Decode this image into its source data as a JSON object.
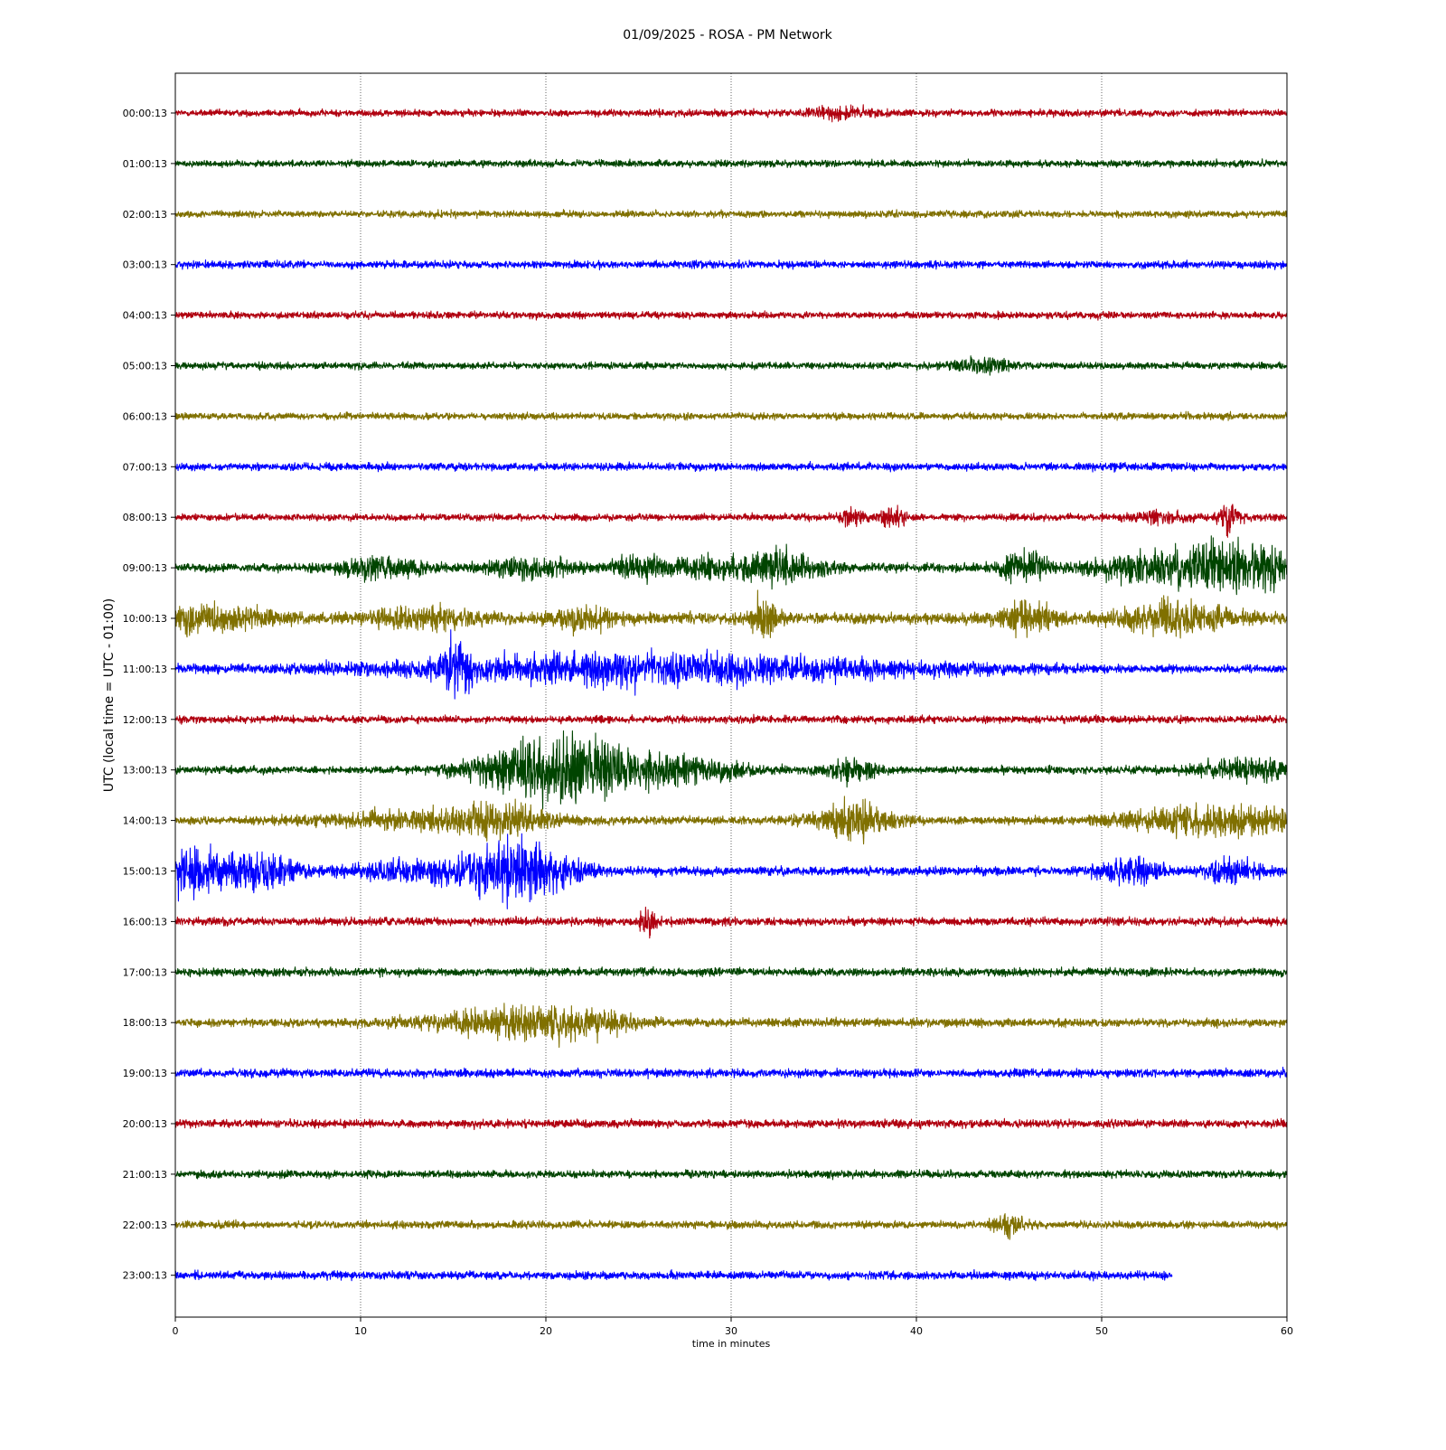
{
  "chart_data": {
    "type": "line",
    "title": "01/09/2025 - ROSA - PM Network",
    "xlabel": "time in minutes",
    "ylabel": "UTC (local time = UTC - 01:00)",
    "xlim": [
      0,
      60
    ],
    "xticks": [
      "0",
      "10",
      "20",
      "30",
      "40",
      "50",
      "60"
    ],
    "grid": "vertical dotted at x ticks",
    "colors": [
      "#b0000f",
      "#004400",
      "#807000",
      "#0000ff"
    ],
    "series": [
      {
        "label": "00:00:13",
        "color": "#b0000f",
        "end": 60,
        "base": 0.1,
        "events": [
          [
            36,
            1.2,
            0.15
          ]
        ]
      },
      {
        "label": "01:00:13",
        "color": "#004400",
        "end": 60,
        "base": 0.1,
        "events": []
      },
      {
        "label": "02:00:13",
        "color": "#807000",
        "end": 60,
        "base": 0.1,
        "events": []
      },
      {
        "label": "03:00:13",
        "color": "#0000ff",
        "end": 60,
        "base": 0.11,
        "events": []
      },
      {
        "label": "04:00:13",
        "color": "#b0000f",
        "end": 60,
        "base": 0.1,
        "events": []
      },
      {
        "label": "05:00:13",
        "color": "#004400",
        "end": 60,
        "base": 0.1,
        "events": [
          [
            43.5,
            1.0,
            0.2
          ]
        ]
      },
      {
        "label": "06:00:13",
        "color": "#807000",
        "end": 60,
        "base": 0.1,
        "events": []
      },
      {
        "label": "07:00:13",
        "color": "#0000ff",
        "end": 60,
        "base": 0.11,
        "events": []
      },
      {
        "label": "08:00:13",
        "color": "#b0000f",
        "end": 60,
        "base": 0.1,
        "events": [
          [
            36.5,
            0.5,
            0.2
          ],
          [
            38.7,
            0.6,
            0.25
          ],
          [
            53,
            1.0,
            0.15
          ],
          [
            56.9,
            0.4,
            0.55
          ]
        ]
      },
      {
        "label": "09:00:13",
        "color": "#004400",
        "end": 60,
        "base": 0.13,
        "events": [
          [
            11,
            1.5,
            0.25
          ],
          [
            19,
            1.5,
            0.25
          ],
          [
            25,
            1.2,
            0.2
          ],
          [
            29,
            2.0,
            0.25
          ],
          [
            33,
            1.4,
            0.4
          ],
          [
            45.8,
            0.8,
            0.45
          ],
          [
            53,
            2.5,
            0.35
          ],
          [
            58,
            3.0,
            0.55
          ]
        ]
      },
      {
        "label": "10:00:13",
        "color": "#807000",
        "end": 60,
        "base": 0.16,
        "events": [
          [
            1.5,
            2.5,
            0.35
          ],
          [
            13.5,
            2.0,
            0.25
          ],
          [
            22,
            1.2,
            0.3
          ],
          [
            31.8,
            0.5,
            0.6
          ],
          [
            46,
            1.0,
            0.45
          ],
          [
            54,
            2.0,
            0.45
          ]
        ]
      },
      {
        "label": "11:00:13",
        "color": "#0000ff",
        "end": 60,
        "base": 0.11,
        "events": [
          [
            15.2,
            0.6,
            0.7
          ],
          [
            26,
            10.0,
            0.42
          ]
        ]
      },
      {
        "label": "12:00:13",
        "color": "#b0000f",
        "end": 60,
        "base": 0.11,
        "events": []
      },
      {
        "label": "13:00:13",
        "color": "#004400",
        "end": 60,
        "base": 0.11,
        "events": [
          [
            19.5,
            2.2,
            0.85
          ],
          [
            22.5,
            1.0,
            0.6
          ],
          [
            26,
            3.0,
            0.4
          ],
          [
            36.5,
            1.0,
            0.25
          ],
          [
            58,
            2.0,
            0.3
          ]
        ]
      },
      {
        "label": "14:00:13",
        "color": "#807000",
        "end": 60,
        "base": 0.12,
        "events": [
          [
            12,
            3.0,
            0.2
          ],
          [
            17.5,
            2.0,
            0.4
          ],
          [
            36.5,
            1.5,
            0.45
          ],
          [
            56.5,
            3.5,
            0.4
          ]
        ]
      },
      {
        "label": "15:00:13",
        "color": "#0000ff",
        "end": 60,
        "base": 0.13,
        "events": [
          [
            1,
            2.0,
            0.6
          ],
          [
            5,
            1.2,
            0.35
          ],
          [
            14,
            3.0,
            0.3
          ],
          [
            19,
            1.8,
            0.75
          ],
          [
            51.5,
            1.2,
            0.35
          ],
          [
            57,
            1.0,
            0.3
          ]
        ]
      },
      {
        "label": "16:00:13",
        "color": "#b0000f",
        "end": 60,
        "base": 0.12,
        "events": [
          [
            25.5,
            0.3,
            0.4
          ]
        ]
      },
      {
        "label": "17:00:13",
        "color": "#004400",
        "end": 60,
        "base": 0.12,
        "events": []
      },
      {
        "label": "18:00:13",
        "color": "#807000",
        "end": 60,
        "base": 0.12,
        "events": [
          [
            17.5,
            3.0,
            0.3
          ],
          [
            21.5,
            2.0,
            0.35
          ]
        ]
      },
      {
        "label": "19:00:13",
        "color": "#0000ff",
        "end": 60,
        "base": 0.12,
        "events": []
      },
      {
        "label": "20:00:13",
        "color": "#b0000f",
        "end": 60,
        "base": 0.12,
        "events": []
      },
      {
        "label": "21:00:13",
        "color": "#004400",
        "end": 60,
        "base": 0.11,
        "events": []
      },
      {
        "label": "22:00:13",
        "color": "#807000",
        "end": 60,
        "base": 0.11,
        "events": [
          [
            45,
            0.6,
            0.25
          ]
        ]
      },
      {
        "label": "23:00:13",
        "color": "#0000ff",
        "end": 53.8,
        "base": 0.12,
        "events": []
      }
    ]
  }
}
